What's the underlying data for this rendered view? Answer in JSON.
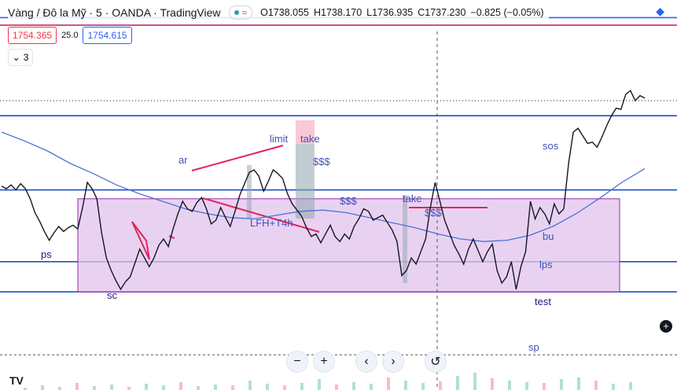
{
  "header": {
    "title": "Vàng / Đô la Mỹ · 5 · OANDA · TradingView",
    "status_wave": "≈",
    "ohlc": [
      {
        "k": "O",
        "v": "1738.055"
      },
      {
        "k": "H",
        "v": "1738.170"
      },
      {
        "k": "L",
        "v": "1736.935"
      },
      {
        "k": "C",
        "v": "1737.230"
      },
      {
        "k": "",
        "v": "−0.825 (−0.05%)"
      }
    ]
  },
  "prices": {
    "sell": "1754.365",
    "spread": "25.0",
    "buy": "1754.615"
  },
  "legend_toggle": {
    "count": "3"
  },
  "nav": {
    "zoom_out": "−",
    "zoom_in": "+",
    "scroll_left": "‹",
    "scroll_right": "›",
    "reset": "↺"
  },
  "colors": {
    "accent": "#2962ff",
    "sell": "#f23645",
    "range_fill": "#e1c3ec",
    "range_border": "#9c27b0",
    "ma": "#4a72d9",
    "candle": "#131722"
  },
  "chart_data": {
    "type": "line",
    "title": "Vàng / Đô la Mỹ · 5 · OANDA",
    "annotations": [
      "ar",
      "ps",
      "sc",
      "limit",
      "take",
      "$$$",
      "LFH+T4h",
      "$$$",
      "take",
      "$$$",
      "sos",
      "bu",
      "lps",
      "test",
      "sp"
    ],
    "series": [
      {
        "name": "Price",
        "values": [
          1741.2,
          1741.0,
          1741.3,
          1740.9,
          1741.4,
          1741.0,
          1740.2,
          1739.1,
          1738.4,
          1737.6,
          1736.9,
          1737.5,
          1738.0,
          1737.6,
          1737.9,
          1738.1,
          1737.8,
          1739.5,
          1741.5,
          1741.0,
          1740.2,
          1737.5,
          1735.5,
          1734.5,
          1733.7,
          1733.0,
          1733.6,
          1734.0,
          1735.1,
          1736.2,
          1735.5,
          1734.8,
          1735.5,
          1736.5,
          1737.0,
          1736.4,
          1737.8,
          1739.0,
          1740.0,
          1739.4,
          1739.2,
          1739.9,
          1740.3,
          1739.4,
          1738.2,
          1738.5,
          1739.5,
          1738.7,
          1738.0,
          1739.2,
          1740.5,
          1741.4,
          1742.3,
          1742.5,
          1742.0,
          1740.8,
          1741.6,
          1742.5,
          1742.2,
          1741.8,
          1740.6,
          1739.8,
          1739.3,
          1738.8,
          1737.9,
          1737.2,
          1737.4,
          1736.7,
          1737.4,
          1738.1,
          1737.2,
          1736.8,
          1737.4,
          1737.0,
          1738.0,
          1738.6,
          1739.4,
          1739.2,
          1738.5,
          1738.7,
          1738.9,
          1738.3,
          1737.7,
          1736.8,
          1734.1,
          1734.5,
          1735.5,
          1735.0,
          1736.0,
          1737.0,
          1739.5,
          1741.5,
          1740.0,
          1738.5,
          1737.5,
          1736.5,
          1735.8,
          1735.0,
          1736.2,
          1737.0,
          1736.1,
          1735.2,
          1736.0,
          1736.6,
          1734.5,
          1733.5,
          1734.0,
          1735.2,
          1733.0,
          1734.8,
          1736.0,
          1740.0,
          1738.6,
          1739.5,
          1739.0,
          1738.2,
          1739.8,
          1739.0,
          1739.4,
          1743.0,
          1745.5,
          1745.8,
          1745.2,
          1744.6,
          1744.7,
          1744.3,
          1745.1,
          1746.0,
          1746.8,
          1747.4,
          1747.3,
          1748.5,
          1748.8,
          1748.0,
          1748.4,
          1748.2
        ]
      },
      {
        "name": "MA",
        "values": [
          1745.5,
          1744.8,
          1744.0,
          1743.0,
          1742.2,
          1741.3,
          1740.6,
          1740.0,
          1739.4,
          1739.0,
          1738.7,
          1738.6,
          1738.9,
          1739.2,
          1739.3,
          1739.1,
          1738.7,
          1738.3,
          1737.9,
          1737.4,
          1737.0,
          1736.8,
          1736.9,
          1737.3,
          1738.0,
          1739.0,
          1740.2,
          1741.5,
          1742.6
        ]
      }
    ],
    "horizontal_lines": [
      {
        "value": 1754.6,
        "color": "#2962ff",
        "style": "solid"
      },
      {
        "value": 1754.0,
        "color": "#c2185b",
        "style": "solid"
      },
      {
        "value": 1748.0,
        "color": "#131722",
        "style": "dotted"
      },
      {
        "value": 1746.8,
        "color": "#1e50c8",
        "style": "solid"
      },
      {
        "value": 1740.9,
        "color": "#1e50c8",
        "style": "solid"
      },
      {
        "value": 1735.2,
        "color": "#1e50c8",
        "style": "solid"
      },
      {
        "value": 1732.8,
        "color": "#1e50c8",
        "style": "solid"
      },
      {
        "value": 1727.8,
        "color": "#555555",
        "style": "dashed"
      }
    ],
    "trading_range": {
      "from": 1732.8,
      "to": 1740.2
    },
    "ylim": [
      1726.0,
      1756.0
    ],
    "grid": false
  }
}
